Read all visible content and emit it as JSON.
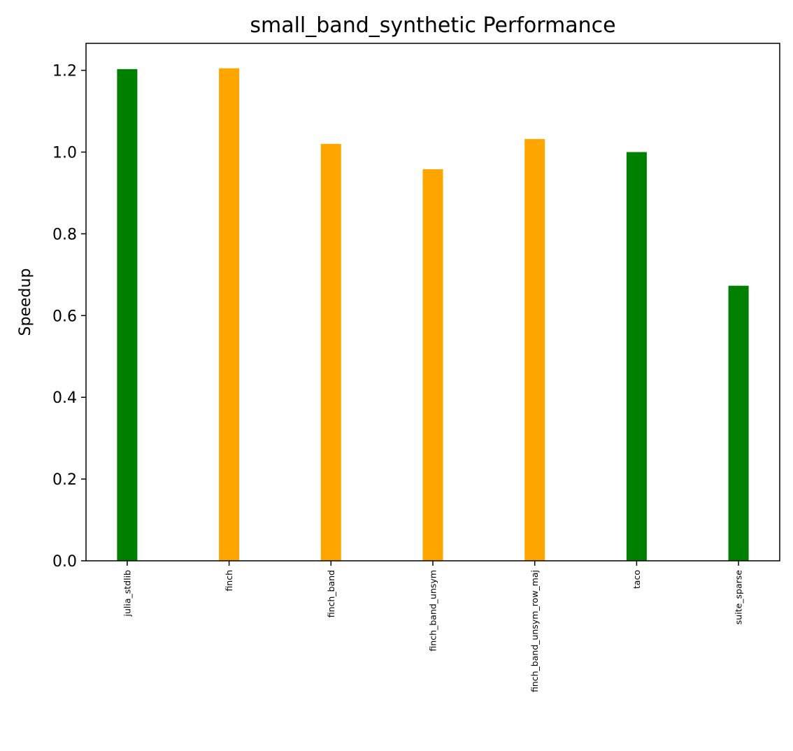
{
  "chart_data": {
    "type": "bar",
    "title": "small_band_synthetic Performance",
    "xlabel": "",
    "ylabel": "Speedup",
    "categories": [
      "julia_stdlib",
      "finch",
      "finch_band",
      "finch_band_unsym",
      "finch_band_unsym_row_maj",
      "taco",
      "suite_sparse"
    ],
    "values": [
      1.203,
      1.205,
      1.02,
      0.958,
      1.032,
      1.0,
      0.673
    ],
    "bar_colors": [
      "#008000",
      "#FFA500",
      "#FFA500",
      "#FFA500",
      "#FFA500",
      "#008000",
      "#008000"
    ],
    "ylim": [
      0,
      1.266
    ],
    "y_ticks": [
      "0.0",
      "0.2",
      "0.4",
      "0.6",
      "0.8",
      "1.0",
      "1.2"
    ],
    "grid": false,
    "legend": "none"
  }
}
